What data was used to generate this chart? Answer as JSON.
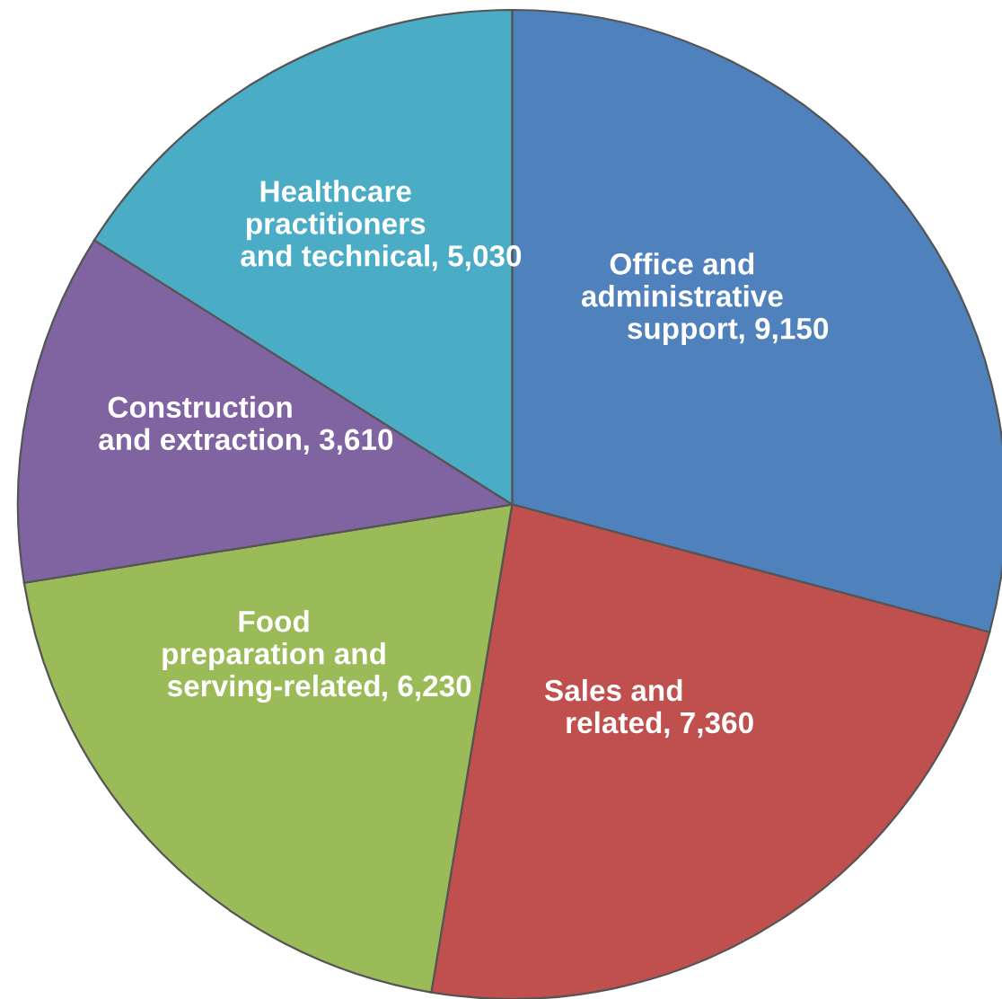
{
  "chart_data": {
    "type": "pie",
    "categories": [
      "Office and\nadministrative\nsupport",
      "Sales and\nrelated",
      "Food\npreparation and\nserving-related",
      "Construction\nand extraction",
      "Healthcare\npractitioners\nand technical"
    ],
    "values": [
      9150,
      7360,
      6230,
      3610,
      5030
    ],
    "value_labels": [
      ", 9,150",
      ", 7,360",
      ", 6,230",
      ", 3,610",
      ", 5,030"
    ],
    "colors": [
      "#4f81bd",
      "#c0504d",
      "#9bbb59",
      "#8064a2",
      "#4bacc6"
    ]
  }
}
